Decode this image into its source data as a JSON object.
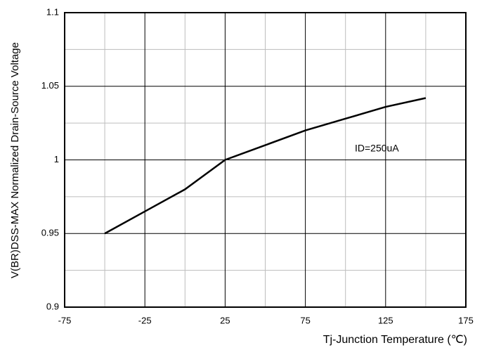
{
  "chart_data": {
    "type": "line",
    "ylabel": "V(BR)DSS-MAX Normalized Drain-Source Voltage",
    "xlabel": "Tj-Junction Temperature (℃)",
    "annotation": "ID=250uA",
    "x": [
      -50,
      -25,
      0,
      25,
      50,
      75,
      100,
      125,
      150
    ],
    "series": [
      {
        "name": "ID=250uA",
        "color": "#000000",
        "values": [
          0.95,
          0.965,
          0.98,
          1.0,
          1.01,
          1.02,
          1.028,
          1.036,
          1.042
        ]
      }
    ],
    "xlim": [
      -75,
      175
    ],
    "xticks": [
      -75,
      -25,
      25,
      75,
      125,
      175
    ],
    "xminor": [
      -50,
      0,
      50,
      100,
      150
    ],
    "ylim": [
      0.9,
      1.1
    ],
    "yticks": [
      0.9,
      0.95,
      1,
      1.05,
      1.1
    ],
    "yminor": [
      0.925,
      0.975,
      1.025,
      1.075
    ],
    "grid": true
  }
}
